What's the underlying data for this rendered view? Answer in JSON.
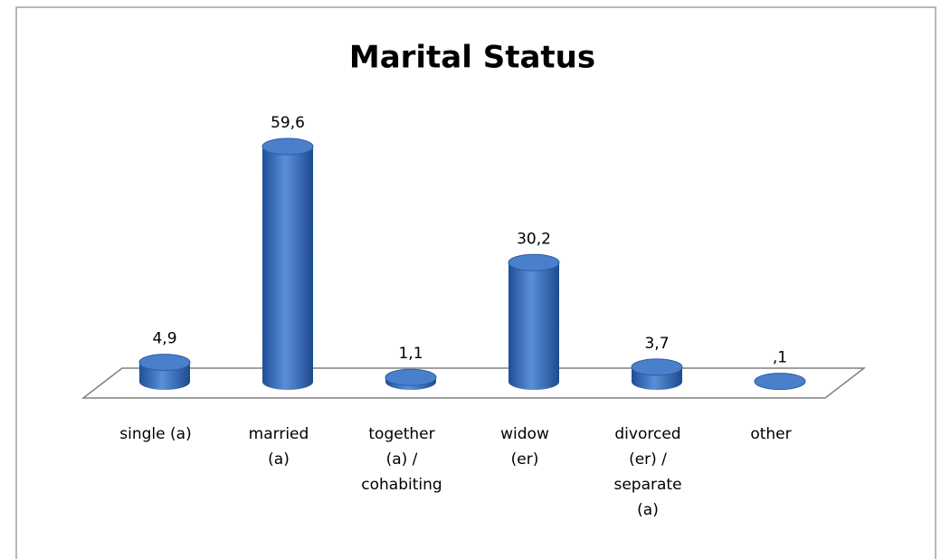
{
  "chart_data": {
    "type": "bar3d",
    "title": "Marital Status",
    "categories": [
      [
        "single (a)"
      ],
      [
        "married",
        "(a)"
      ],
      [
        "together",
        "(a) /",
        "cohabiting"
      ],
      [
        "widow",
        "(er)"
      ],
      [
        "divorced",
        "(er) /",
        "separate",
        "(a)"
      ],
      [
        "other"
      ]
    ],
    "values": [
      4.9,
      59.6,
      1.1,
      30.2,
      3.7,
      0.1
    ],
    "value_labels": [
      "4,9",
      "59,6",
      "1,1",
      "30,2",
      "3,7",
      ",1"
    ],
    "color": "#3a6fbf"
  }
}
